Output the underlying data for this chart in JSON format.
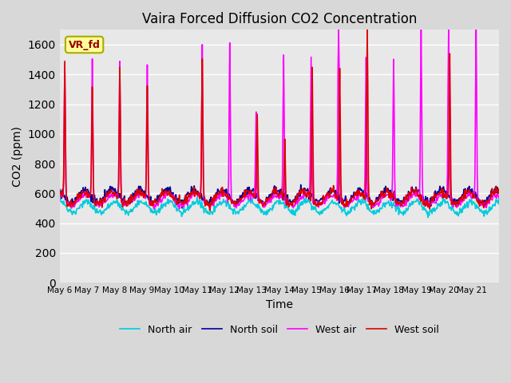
{
  "title": "Vaira Forced Diffusion CO2 Concentration",
  "xlabel": "Time",
  "ylabel": "CO2 (ppm)",
  "legend_label": "VR_fd",
  "ylim": [
    0,
    1700
  ],
  "yticks": [
    0,
    200,
    400,
    600,
    800,
    1000,
    1200,
    1400,
    1600
  ],
  "xtick_labels": [
    "May 6",
    "May 7",
    "May 8",
    "May 9",
    "May 10",
    "May 11",
    "May 12",
    "May 13",
    "May 14",
    "May 15",
    "May 16",
    "May 17",
    "May 18",
    "May 19",
    "May 20",
    "May 21"
  ],
  "xtick_positions": [
    0,
    1,
    2,
    3,
    4,
    5,
    6,
    7,
    8,
    9,
    10,
    11,
    12,
    13,
    14,
    15
  ],
  "series_labels": [
    "West soil",
    "West air",
    "North soil",
    "North air"
  ],
  "series_colors": [
    "#dd0000",
    "#ff00ff",
    "#000099",
    "#00ccdd"
  ],
  "bg_color": "#e8e8e8",
  "grid_color": "#ffffff",
  "annotation_text": "VR_fd",
  "annotation_bg": "#ffff99",
  "annotation_border": "#aaaa00",
  "annotation_text_color": "#990000"
}
